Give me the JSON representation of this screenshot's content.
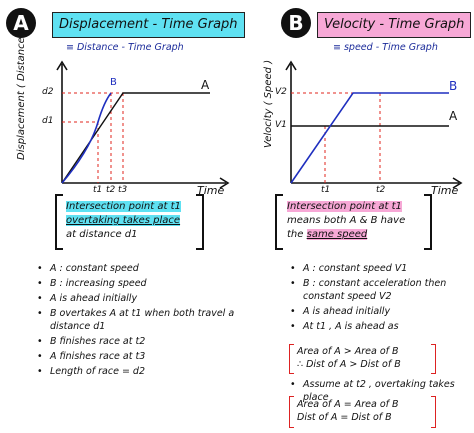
{
  "panel_a": {
    "badge": "A",
    "title": "Displacement - Time Graph",
    "subtitle": "≡ Distance - Time Graph",
    "ylabel": "Displacement ( Distance )",
    "xlabel": "Time",
    "y_ticks": [
      "d2",
      "d1"
    ],
    "x_ticks": [
      "t1",
      "t2",
      "t3"
    ],
    "line_labels": [
      "B",
      "A"
    ],
    "note_line1": "Intersection point at t1",
    "note_line2": "overtaking takes place",
    "note_line3": "at distance  d1",
    "bullets": [
      "A : constant speed",
      "B : increasing speed",
      "A is ahead initially",
      "B overtakes A at t1 when both travel a distance d1",
      "B finishes race at t2",
      "A finishes race at t3",
      "Length of race = d2"
    ]
  },
  "panel_b": {
    "badge": "B",
    "title": "Velocity - Time Graph",
    "subtitle": "≡ speed - Time Graph",
    "ylabel": "Velocity ( Speed )",
    "xlabel": "Time",
    "y_ticks": [
      "V2",
      "V1"
    ],
    "x_ticks": [
      "t1",
      "t2"
    ],
    "line_labels": [
      "B",
      "A"
    ],
    "note_line1": "Intersection point at t1",
    "note_line2": "means both  A & B have",
    "note_line3_pre": "the",
    "note_line3_hl": "same speed",
    "bullets": [
      "A : constant speed V1",
      "B : constant acceleration then constant speed V2",
      "A is ahead initially",
      "At t1 , A is ahead as"
    ],
    "box1": [
      "Area of A > Area of B",
      "∴ Dist of A > Dist of B"
    ],
    "bullet_last": "Assume at t2 , overtaking takes place",
    "box2": [
      "Area of A = Area of B",
      "Dist of A = Dist of B"
    ]
  },
  "colors": {
    "blue": "#1f2fbf",
    "red": "#e0241c",
    "cyan": "#5fe1f2",
    "pink": "#f7a8d6"
  }
}
